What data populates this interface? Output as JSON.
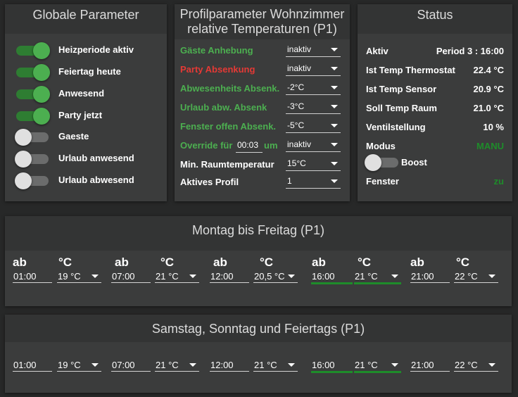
{
  "global": {
    "title": "Globale Parameter",
    "toggles": [
      {
        "label": "Heizperiode aktiv",
        "on": true
      },
      {
        "label": "Feiertag heute",
        "on": true
      },
      {
        "label": "Anwesend",
        "on": true
      },
      {
        "label": "Party jetzt",
        "on": true
      },
      {
        "label": "Gaeste",
        "on": false
      },
      {
        "label": "Urlaub anwesend",
        "on": false
      },
      {
        "label": "Urlaub abwesend",
        "on": false
      }
    ]
  },
  "profile": {
    "title_line1": "Profilparameter Wohnzimmer",
    "title_line2": "relative Temperaturen (P1)",
    "rows": [
      {
        "label": "Gäste Anhebung",
        "value": "inaktiv"
      },
      {
        "label": "Party Absenkung",
        "value": "inaktiv"
      },
      {
        "label": "Abwesenheits Absenk.",
        "value": "-2°C"
      },
      {
        "label": "Urlaub abw. Absenk",
        "value": "-3°C"
      },
      {
        "label": "Fenster offen Absenk.",
        "value": "-5°C"
      }
    ],
    "override": {
      "label_pre": "Override für",
      "time": "00:03",
      "label_post": "um",
      "value": "inaktiv"
    },
    "min_temp": {
      "label": "Min. Raumtemperatur",
      "value": "15°C"
    },
    "active_profile": {
      "label": "Aktives Profil",
      "value": "1"
    }
  },
  "status": {
    "title": "Status",
    "aktiv_label": "Aktiv",
    "aktiv_value": "Period 3 : 16:00",
    "ist_thermostat_label": "Ist Temp Thermostat",
    "ist_thermostat_value": "22.4 °C",
    "ist_sensor_label": "Ist Temp Sensor",
    "ist_sensor_value": "20.9 °C",
    "soll_label": "Soll Temp Raum",
    "soll_value": "21.0 °C",
    "ventil_label": "Ventilstellung",
    "ventil_value": "10 %",
    "modus_label": "Modus",
    "modus_value": "MANU",
    "boost_label": "Boost",
    "fenster_label": "Fenster",
    "fenster_value": "zu"
  },
  "weekday": {
    "title": "Montag bis Freitag (P1)",
    "ab_label": "ab",
    "temp_label": "°C",
    "periods": [
      {
        "time": "01:00",
        "temp": "19 °C"
      },
      {
        "time": "07:00",
        "temp": "21 °C"
      },
      {
        "time": "12:00",
        "temp": "20,5 °C"
      },
      {
        "time": "16:00",
        "temp": "21 °C"
      },
      {
        "time": "21:00",
        "temp": "22 °C"
      }
    ]
  },
  "weekend": {
    "title": "Samstag, Sonntag und Feiertags (P1)",
    "periods": [
      {
        "time": "01:00",
        "temp": "19 °C"
      },
      {
        "time": "07:00",
        "temp": "21 °C"
      },
      {
        "time": "12:00",
        "temp": "21 °C"
      },
      {
        "time": "16:00",
        "temp": "21 °C"
      },
      {
        "time": "21:00",
        "temp": "22 °C"
      }
    ]
  },
  "colors": {
    "accent_green": "#4caf50",
    "active_underline": "#1e8c2a",
    "warning_red": "#e53935",
    "status_green": "#1e8c2a"
  }
}
